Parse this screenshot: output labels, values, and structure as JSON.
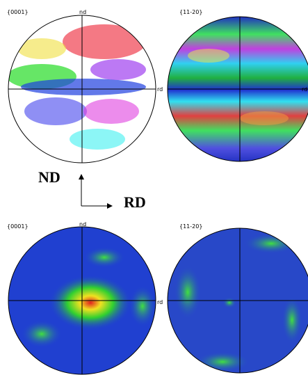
{
  "panels": [
    {
      "title": "{0001}",
      "nd": "nd",
      "rd": "rd"
    },
    {
      "title": "{11-20}",
      "rd": "rd"
    },
    {
      "title": "{0001}",
      "nd": "nd",
      "rd": "rd"
    },
    {
      "title": "{11-20}"
    }
  ],
  "axes": {
    "nd": "ND",
    "rd": "RD"
  }
}
